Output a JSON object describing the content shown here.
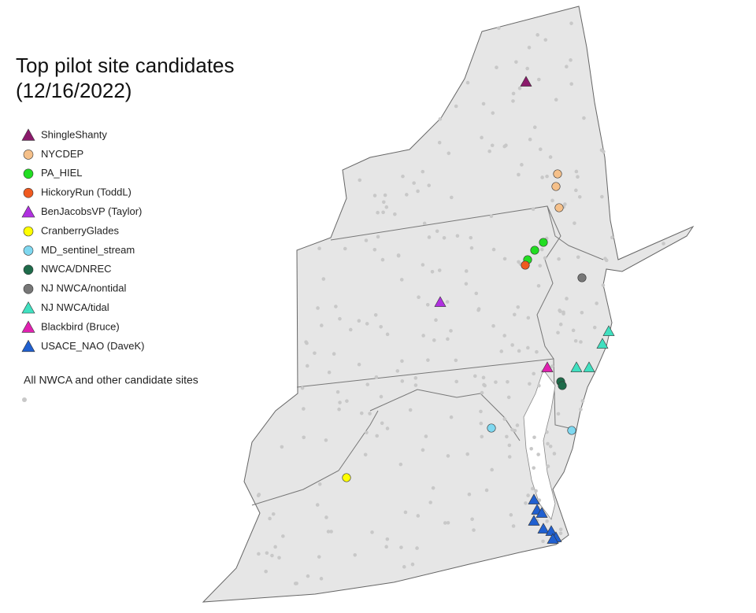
{
  "title": "Top pilot site candidates",
  "subtitle": "(12/16/2022)",
  "legend": [
    {
      "label": "ShingleShanty",
      "shape": "triangle",
      "color": "#8b1a6b"
    },
    {
      "label": "NYCDEP",
      "shape": "circle",
      "color": "#f5c08a"
    },
    {
      "label": "PA_HIEL",
      "shape": "circle",
      "color": "#22dd22"
    },
    {
      "label": "HickoryRun (ToddL)",
      "shape": "circle",
      "color": "#f05a20"
    },
    {
      "label": "BenJacobsVP (Taylor)",
      "shape": "triangle",
      "color": "#b030e0"
    },
    {
      "label": "CranberryGlades",
      "shape": "circle",
      "color": "#ffff00"
    },
    {
      "label": "MD_sentinel_stream",
      "shape": "circle",
      "color": "#7fd8f0"
    },
    {
      "label": "NWCA/DNREC",
      "shape": "circle",
      "color": "#1e6b4a"
    },
    {
      "label": "NJ NWCA/nontidal",
      "shape": "circle",
      "color": "#777777"
    },
    {
      "label": "NJ NWCA/tidal",
      "shape": "triangle",
      "color": "#40e0c0"
    },
    {
      "label": "Blackbird (Bruce)",
      "shape": "triangle",
      "color": "#e020b0"
    },
    {
      "label": "USACE_NAO (DaveK)",
      "shape": "triangle",
      "color": "#2060d0"
    }
  ],
  "other_sites": {
    "label": "All NWCA and other candidate sites",
    "color": "#c8c8c8"
  }
}
